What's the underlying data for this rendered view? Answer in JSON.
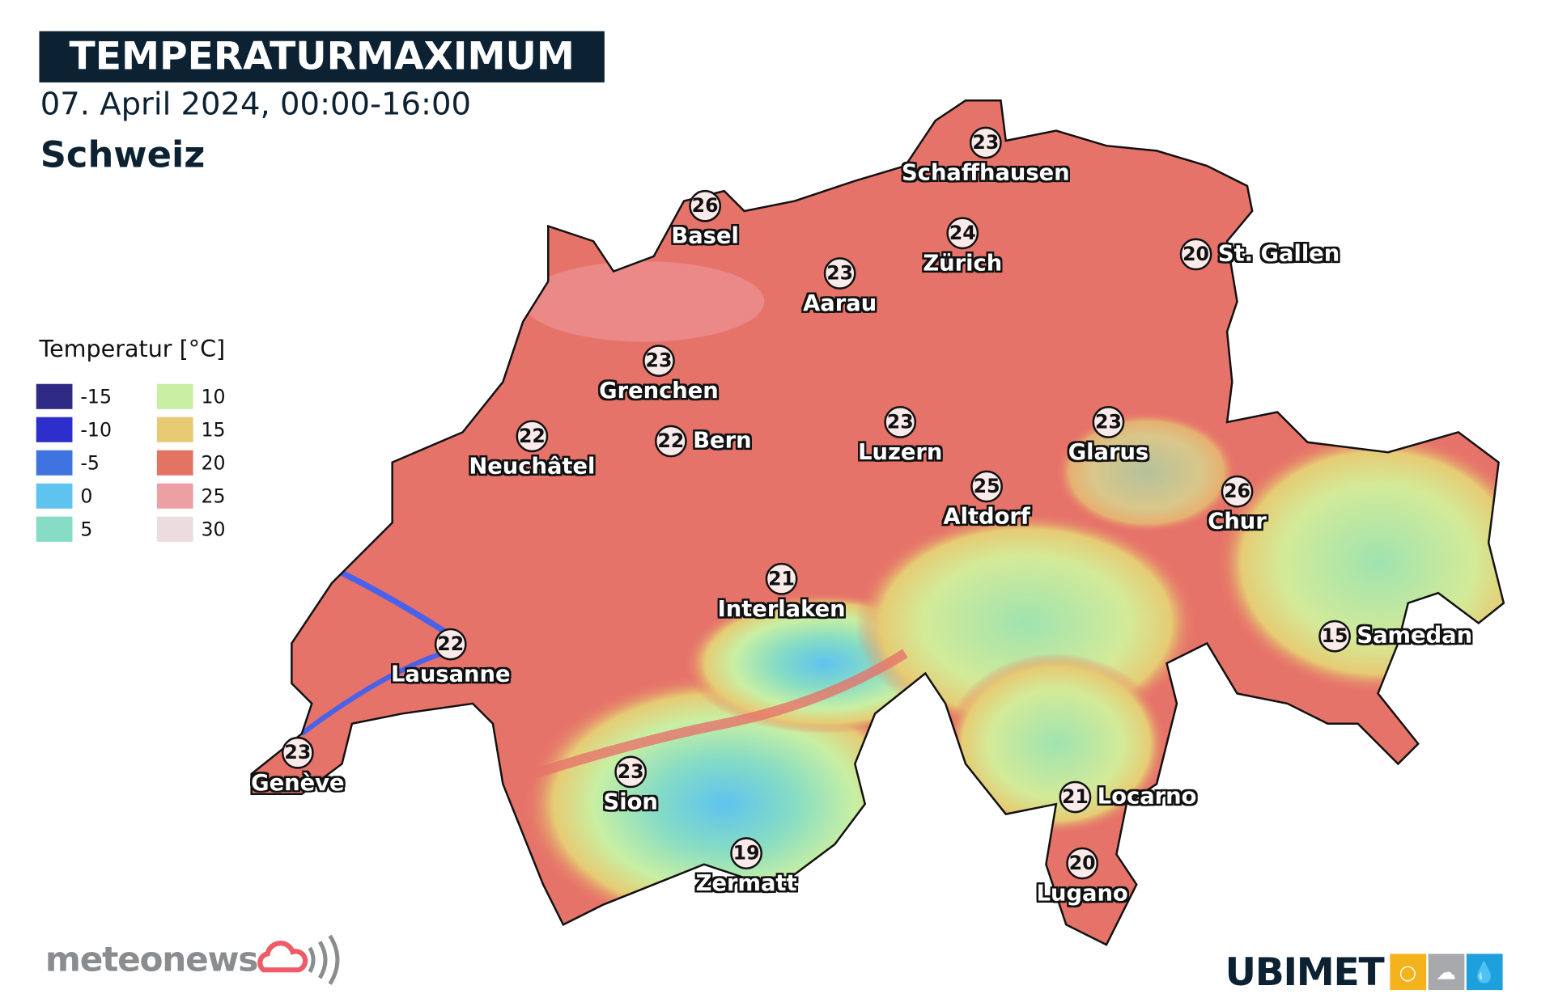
{
  "header": {
    "title": "TEMPERATURMAXIMUM",
    "subtitle": "07. April 2024, 00:00-16:00",
    "region": "Schweiz"
  },
  "legend": {
    "title": "Temperatur [°C]",
    "items": [
      {
        "value": "-15",
        "color": "#2e2a85"
      },
      {
        "value": "-10",
        "color": "#2c2fcc"
      },
      {
        "value": "-5",
        "color": "#3f74e0"
      },
      {
        "value": "0",
        "color": "#5ec3ef"
      },
      {
        "value": "5",
        "color": "#86dcc4"
      },
      {
        "value": "10",
        "color": "#c8efa3"
      },
      {
        "value": "15",
        "color": "#e6cb74"
      },
      {
        "value": "20",
        "color": "#e37464"
      },
      {
        "value": "25",
        "color": "#eda0a4"
      },
      {
        "value": "30",
        "color": "#ecdcdf"
      }
    ]
  },
  "cities": [
    {
      "name": "Schaffhausen",
      "temp": "23"
    },
    {
      "name": "Basel",
      "temp": "26"
    },
    {
      "name": "Zürich",
      "temp": "24"
    },
    {
      "name": "St. Gallen",
      "temp": "20"
    },
    {
      "name": "Aarau",
      "temp": "23"
    },
    {
      "name": "Grenchen",
      "temp": "23"
    },
    {
      "name": "Bern",
      "temp": "22"
    },
    {
      "name": "Neuchâtel",
      "temp": "22"
    },
    {
      "name": "Luzern",
      "temp": "23"
    },
    {
      "name": "Glarus",
      "temp": "23"
    },
    {
      "name": "Altdorf",
      "temp": "25"
    },
    {
      "name": "Chur",
      "temp": "26"
    },
    {
      "name": "Interlaken",
      "temp": "21"
    },
    {
      "name": "Samedan",
      "temp": "15"
    },
    {
      "name": "Lausanne",
      "temp": "22"
    },
    {
      "name": "Genève",
      "temp": "23"
    },
    {
      "name": "Sion",
      "temp": "23"
    },
    {
      "name": "Zermatt",
      "temp": "19"
    },
    {
      "name": "Locarno",
      "temp": "21"
    },
    {
      "name": "Lugano",
      "temp": "20"
    }
  ],
  "logos": {
    "left": "meteonews",
    "right": "UBIMET"
  }
}
